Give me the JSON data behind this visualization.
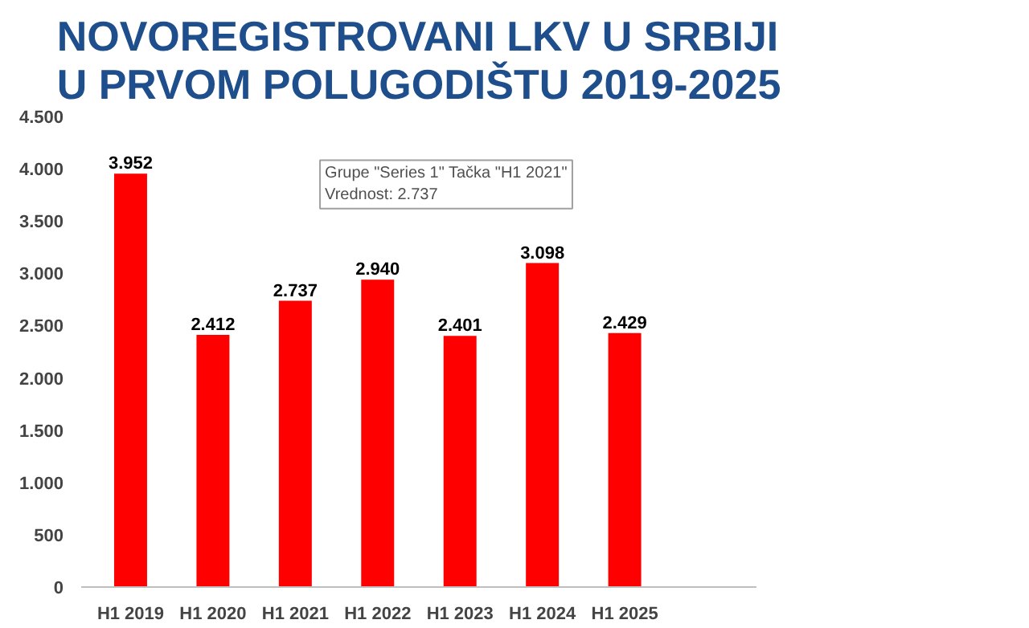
{
  "chart_data": {
    "type": "bar",
    "title": "NOVOREGISTROVANI LKV U SRBIJI\nU PRVOM POLUGODIŠTU 2019-2025",
    "categories": [
      "H1 2019",
      "H1 2020",
      "H1 2021",
      "H1 2022",
      "H1 2023",
      "H1 2024",
      "H1 2025"
    ],
    "values": [
      3952,
      2412,
      2737,
      2940,
      2401,
      3098,
      2429
    ],
    "color": "#ff0000",
    "grid": false,
    "value_labels": [
      "3.952",
      "2.412",
      "2.737",
      "2.940",
      "2.401",
      "3.098",
      "2.429"
    ],
    "ylim": [
      0,
      4500
    ],
    "yticks": [
      {
        "value": 0,
        "label": "0"
      },
      {
        "value": 500,
        "label": "500"
      },
      {
        "value": 1000,
        "label": "1.000"
      },
      {
        "value": 1500,
        "label": "1.500"
      },
      {
        "value": 2000,
        "label": "2.000"
      },
      {
        "value": 2500,
        "label": "2.500"
      },
      {
        "value": 3000,
        "label": "3.000"
      },
      {
        "value": 3500,
        "label": "3.500"
      },
      {
        "value": 4000,
        "label": "4.000"
      },
      {
        "value": 4500,
        "label": "4.500"
      }
    ],
    "annotations": [
      "Grupe \"Series 1\" Tačka \"H1 2021\"\nVrednost: 2.737"
    ]
  }
}
